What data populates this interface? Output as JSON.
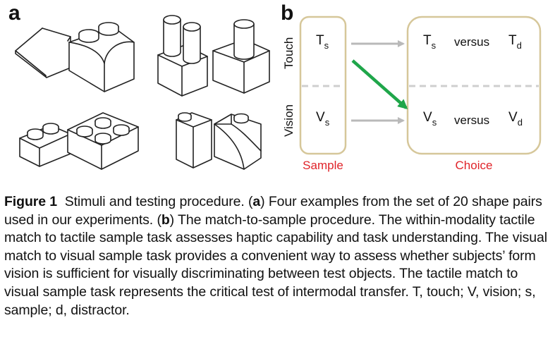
{
  "panel_a": {
    "label": "a"
  },
  "panel_b": {
    "label": "b",
    "rows": [
      "Touch",
      "Vision"
    ],
    "sample_items": [
      {
        "base": "T",
        "sub": "s"
      },
      {
        "base": "V",
        "sub": "s"
      }
    ],
    "choice_rows": [
      {
        "left": {
          "base": "T",
          "sub": "s"
        },
        "word": "versus",
        "right": {
          "base": "T",
          "sub": "d"
        }
      },
      {
        "left": {
          "base": "V",
          "sub": "s"
        },
        "word": "versus",
        "right": {
          "base": "V",
          "sub": "d"
        }
      }
    ],
    "sample_label": "Sample",
    "choice_label": "Choice",
    "colors": {
      "box_border": "#d6c79a",
      "arrow_gray": "#b9b9b9",
      "arrow_green": "#1fa64a",
      "label_red": "#e0242a",
      "dash": "#cfcfcf"
    }
  },
  "caption": {
    "label": "Figure 1",
    "intro": "Stimuli and testing procedure. (",
    "a": "a",
    "a_text": ") Four examples from the set of 20 shape pairs used in our experiments. (",
    "b": "b",
    "b_text": ") The match-to-sample procedure. The within-modality tactile match to tactile sample task assesses haptic capability and task understanding. The visual match to visual sample task provides a convenient way to assess whether subjects’ form vision is sufficient for visually discriminating between test objects. The tactile match to visual sample task represents the critical test of intermodal transfer. T, touch; V, vision; s, sample; d, distractor."
  }
}
